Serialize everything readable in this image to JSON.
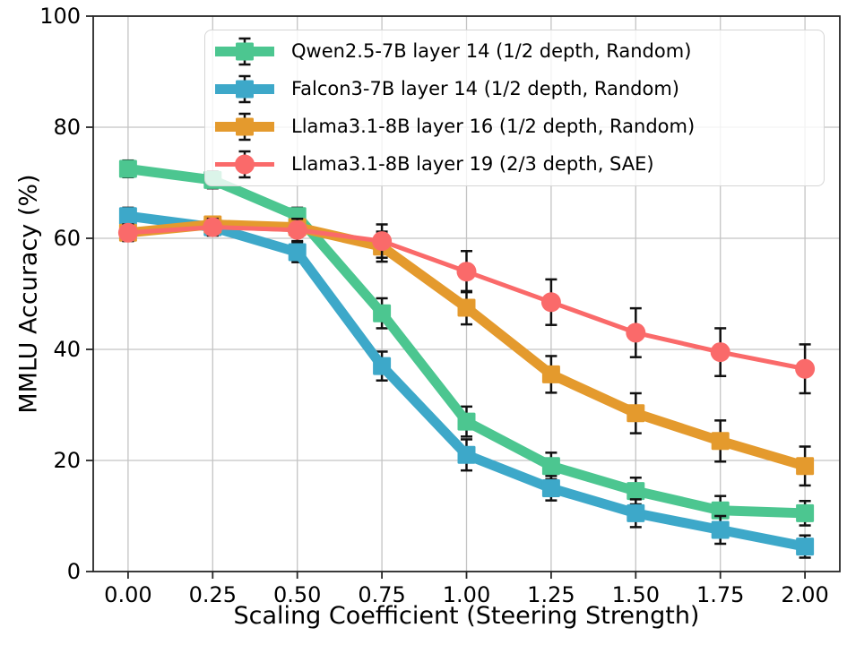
{
  "chart_data": {
    "type": "line",
    "title": "",
    "xlabel": "Scaling Coefficient (Steering Strength)",
    "ylabel": "MMLU Accuracy (%)",
    "x": [
      0.0,
      0.25,
      0.5,
      0.75,
      1.0,
      1.25,
      1.5,
      1.75,
      2.0
    ],
    "x_tick_labels": [
      "0.00",
      "0.25",
      "0.50",
      "0.75",
      "1.00",
      "1.25",
      "1.50",
      "1.75",
      "2.00"
    ],
    "y_ticks": [
      0,
      20,
      40,
      60,
      80,
      100
    ],
    "y_tick_labels": [
      "0",
      "20",
      "40",
      "60",
      "80",
      "100"
    ],
    "xlim": [
      -0.103,
      2.103
    ],
    "ylim": [
      0,
      100
    ],
    "grid": true,
    "grid_color": "#c4c4c4",
    "spine_color": "#262626",
    "error_bar_color": "#111111",
    "legend_position": "upper right",
    "series": [
      {
        "name": "Qwen2.5-7B layer 14 (1/2 depth, Random)",
        "color": "#4cc690",
        "marker": "square",
        "line_width": 11,
        "values": [
          72.5,
          70.5,
          64.0,
          46.5,
          27.0,
          19.0,
          14.5,
          11.0,
          10.5
        ],
        "errors": [
          1.5,
          1.5,
          1.5,
          2.7,
          2.7,
          2.4,
          2.4,
          2.6,
          2.2
        ]
      },
      {
        "name": "Falcon3-7B layer 14 (1/2 depth, Random)",
        "color": "#3da8c9",
        "marker": "square",
        "line_width": 11,
        "values": [
          64.0,
          62.0,
          57.5,
          37.0,
          21.0,
          15.0,
          10.5,
          7.5,
          4.5
        ],
        "errors": [
          1.5,
          1.5,
          1.8,
          2.6,
          2.8,
          2.2,
          2.5,
          2.5,
          2.0
        ]
      },
      {
        "name": "Llama3.1-8B layer 16 (1/2 depth, Random)",
        "color": "#e49a2d",
        "marker": "square",
        "line_width": 11,
        "values": [
          61.0,
          62.5,
          62.0,
          58.5,
          47.5,
          35.5,
          28.5,
          23.5,
          19.0
        ],
        "errors": [
          1.2,
          1.2,
          1.5,
          2.7,
          3.0,
          3.3,
          3.6,
          3.7,
          3.5
        ]
      },
      {
        "name": "Llama3.1-8B layer 19 (2/3 depth, SAE)",
        "color": "#fa6a6a",
        "marker": "circle",
        "line_width": 5,
        "values": [
          61.0,
          62.0,
          61.5,
          59.5,
          54.0,
          48.5,
          43.0,
          39.5,
          36.5
        ],
        "errors": [
          1.5,
          1.5,
          2.0,
          3.0,
          3.7,
          4.1,
          4.4,
          4.3,
          4.4
        ]
      }
    ]
  }
}
